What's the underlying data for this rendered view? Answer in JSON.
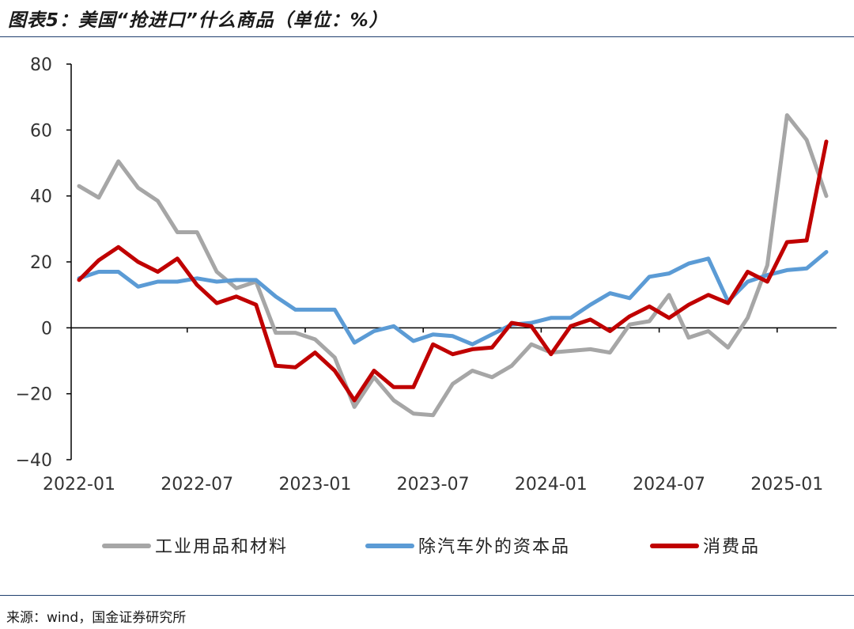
{
  "header": {
    "title": "图表5：美国“抢进口”什么商品（单位：%）"
  },
  "footer": {
    "source": "来源：wind，国金证券研究所"
  },
  "chart_data": {
    "type": "line",
    "title": "",
    "xlabel": "",
    "ylabel": "",
    "ylim": [
      -40,
      80
    ],
    "yticks": [
      -40,
      -20,
      0,
      20,
      40,
      60,
      80
    ],
    "xtick_labels": [
      "2022-01",
      "2022-07",
      "2023-01",
      "2023-07",
      "2024-01",
      "2024-07",
      "2025-01"
    ],
    "xtick_index": [
      0,
      6,
      12,
      18,
      24,
      30,
      36
    ],
    "grid": false,
    "legend_position": "bottom",
    "x": [
      "2022-01",
      "2022-02",
      "2022-03",
      "2022-04",
      "2022-05",
      "2022-06",
      "2022-07",
      "2022-08",
      "2022-09",
      "2022-10",
      "2022-11",
      "2022-12",
      "2023-01",
      "2023-02",
      "2023-03",
      "2023-04",
      "2023-05",
      "2023-06",
      "2023-07",
      "2023-08",
      "2023-09",
      "2023-10",
      "2023-11",
      "2023-12",
      "2024-01",
      "2024-02",
      "2024-03",
      "2024-04",
      "2024-05",
      "2024-06",
      "2024-07",
      "2024-08",
      "2024-09",
      "2024-10",
      "2024-11",
      "2024-12",
      "2025-01",
      "2025-02",
      "2025-03"
    ],
    "series": [
      {
        "name": "工业用品和材料",
        "color": "#a6a6a6",
        "values": [
          43,
          39.5,
          50.5,
          42.5,
          38.5,
          29,
          29,
          17,
          12,
          14,
          -1.5,
          -1.5,
          -3.5,
          -9,
          -24,
          -15,
          -22,
          -26,
          -26.5,
          -17,
          -13,
          -15,
          -11.5,
          -5,
          -7.5,
          -7,
          -6.5,
          -7.5,
          1,
          2,
          10,
          -3,
          -1,
          -6,
          3,
          19,
          64.5,
          57,
          40
        ]
      },
      {
        "name": "除汽车外的资本品",
        "color": "#5b9bd5",
        "values": [
          15,
          17,
          17,
          12.5,
          14,
          14,
          15,
          14,
          14.5,
          14.5,
          9.5,
          5.5,
          5.5,
          5.5,
          -4.5,
          -1,
          0.5,
          -4,
          -2,
          -2.5,
          -5,
          -2,
          1,
          1.5,
          3,
          3,
          7,
          10.5,
          9,
          15.5,
          16.5,
          19.5,
          21,
          8,
          14,
          16,
          17.5,
          18,
          23
        ]
      },
      {
        "name": "消费品",
        "color": "#c00000",
        "values": [
          14.5,
          20.5,
          24.5,
          20,
          17,
          21,
          13,
          7.5,
          9.5,
          7,
          -11.5,
          -12,
          -7.5,
          -13,
          -22,
          -13,
          -18,
          -18,
          -5,
          -8,
          -6.5,
          -6,
          1.5,
          0.5,
          -8,
          0.5,
          2.5,
          -1,
          3.5,
          6.5,
          3,
          7,
          10,
          7.5,
          17,
          14,
          26,
          26.5,
          56.5
        ]
      }
    ]
  }
}
